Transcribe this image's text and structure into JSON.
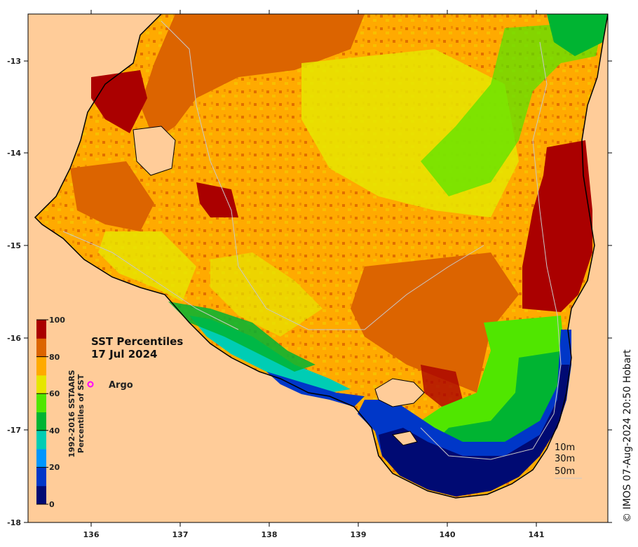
{
  "map": {
    "title_line1": "SST Percentiles",
    "title_line2": "17 Jul 2024",
    "argo_label": "Argo",
    "colorbar_label_line1": "1992-2016 SSTAARS",
    "colorbar_label_line2": "Percentiles of SST",
    "colorbar_ticks": [
      "0",
      "20",
      "40",
      "60",
      "80",
      "100"
    ],
    "colorbar_colors": [
      "#000a73",
      "#0037c8",
      "#0096ff",
      "#00cdb4",
      "#00b432",
      "#50e600",
      "#e6e600",
      "#ffaa00",
      "#dc6400",
      "#aa0000"
    ],
    "lon_ticks": [
      "136",
      "137",
      "138",
      "139",
      "140",
      "141"
    ],
    "lat_ticks": [
      "-13",
      "-14",
      "-15",
      "-16",
      "-17",
      "-18"
    ],
    "depth_labels": [
      "10m",
      "30m",
      "50m"
    ],
    "credit": "© IMOS 07-Aug-2024 20:50 Hobart",
    "land_color": "#ffcc99",
    "argo_color": "#ff00ff"
  }
}
